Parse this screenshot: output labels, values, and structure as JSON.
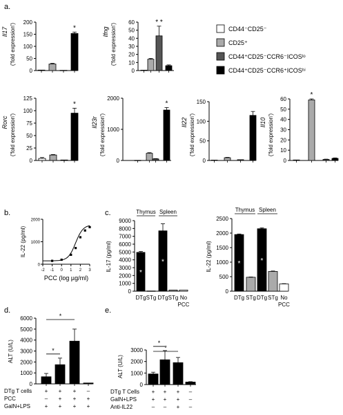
{
  "panel_labels": {
    "a": "a.",
    "b": "b.",
    "c": "c.",
    "d": "d.",
    "e": "e."
  },
  "legend": {
    "items": [
      {
        "label": "CD44⁻CD25⁻",
        "color": "#ffffff"
      },
      {
        "label": "CD25⁺",
        "color": "#aaaaaa"
      },
      {
        "label": "CD44⁺CD25⁻CCR6⁻ICOSˡᵒ",
        "color": "#555555"
      },
      {
        "label": "CD44⁺CD25⁻CCR6⁺ICOSʰⁱ",
        "color": "#000000"
      }
    ]
  },
  "colors": {
    "white_bar": "#ffffff",
    "lightgray_bar": "#aaaaaa",
    "darkgray_bar": "#555555",
    "black_bar": "#000000",
    "axis": "#000000"
  },
  "chart_data": [
    {
      "id": "a-il17",
      "type": "bar",
      "gene": "Il17",
      "ylabel": "('fold expression')",
      "ticks": [
        "0",
        "50",
        "100",
        "150",
        "200"
      ],
      "ylim": [
        0,
        200
      ],
      "values": [
        2,
        27,
        1,
        153
      ],
      "errors": [
        1,
        3,
        0.5,
        6
      ],
      "stars": [
        "",
        "",
        "",
        "*"
      ]
    },
    {
      "id": "a-ifng",
      "type": "bar",
      "gene": "Ifng",
      "ylabel": "('fold expression')",
      "ticks": [
        "0",
        "10",
        "20",
        "30",
        "40",
        "50",
        "60"
      ],
      "ylim": [
        0,
        60
      ],
      "values": [
        0.5,
        14,
        43,
        6
      ],
      "errors": [
        0.3,
        1,
        12,
        1
      ],
      "stars": [
        "",
        "",
        "* *",
        ""
      ]
    },
    {
      "id": "a-rorc",
      "type": "bar",
      "gene": "Rorc",
      "ylabel": "('fold expression')",
      "ticks": [
        "0",
        "25",
        "50",
        "75",
        "100",
        "125"
      ],
      "ylim": [
        0,
        125
      ],
      "values": [
        4,
        11,
        1,
        95
      ],
      "errors": [
        2,
        1,
        0.5,
        10
      ],
      "stars": [
        "",
        "",
        "",
        "*"
      ]
    },
    {
      "id": "a-il23r",
      "type": "bar",
      "gene": "Il23r",
      "ylabel": "('fold expression')",
      "ticks": [
        "0",
        "1000",
        "2000"
      ],
      "ylim": [
        0,
        2000
      ],
      "values": [
        5,
        230,
        50,
        1620
      ],
      "errors": [
        3,
        20,
        10,
        80
      ],
      "stars": [
        "",
        "",
        "",
        "*"
      ]
    },
    {
      "id": "a-il22",
      "type": "bar",
      "gene": "Il22",
      "ylabel": "('fold expression')",
      "ticks": [
        "0",
        "50",
        "100",
        "150"
      ],
      "ylim": [
        0,
        150
      ],
      "values": [
        1,
        7,
        2,
        115
      ],
      "errors": [
        0.5,
        1,
        0.5,
        10
      ],
      "stars": [
        "",
        "",
        "",
        ""
      ]
    },
    {
      "id": "a-il10",
      "type": "bar",
      "gene": "Il10",
      "ylabel": "('fold expression')",
      "ticks": [
        "0",
        "10",
        "20",
        "30",
        "40",
        "50",
        "60"
      ],
      "ylim": [
        0,
        60
      ],
      "values": [
        0.5,
        59,
        1,
        2
      ],
      "errors": [
        0.2,
        1,
        0.3,
        0.5
      ],
      "stars": [
        "",
        "*",
        "",
        ""
      ]
    },
    {
      "id": "b-dose",
      "type": "scatter",
      "ylabel": "IL-22 (pg/ml)",
      "xlabel": "PCC (log µg/ml)",
      "xticks": [
        "-2",
        "-1",
        "0",
        "1",
        "2",
        "3"
      ],
      "xlim": [
        -2,
        3
      ],
      "yticks": [
        "0",
        "1000",
        "2000"
      ],
      "ylim": [
        0,
        2000
      ],
      "points": [
        {
          "x": -1,
          "y": 150
        },
        {
          "x": 0,
          "y": 200
        },
        {
          "x": 1,
          "y": 420
        },
        {
          "x": 1.5,
          "y": 720
        },
        {
          "x": 2,
          "y": 1200
        },
        {
          "x": 2.5,
          "y": 1500
        },
        {
          "x": 3,
          "y": 1650
        }
      ]
    },
    {
      "id": "c-il17",
      "type": "bar",
      "ylabel": "IL-17 (pg/ml)",
      "ticks": [
        "0",
        "1000",
        "2000",
        "3000",
        "4000",
        "5000",
        "6000",
        "7000",
        "8000",
        "9000"
      ],
      "ylim": [
        0,
        9000
      ],
      "categories": [
        "DTg",
        "STg",
        "DTg",
        "STg",
        "No"
      ],
      "extra_label": "PCC",
      "groups": [
        "Thymus",
        "Spleen"
      ],
      "values": [
        4950,
        30,
        7700,
        150,
        150
      ],
      "errors": [
        120,
        10,
        900,
        20,
        20
      ],
      "colors": [
        "black",
        "white",
        "black",
        "gray",
        "white"
      ],
      "stars": [
        "*",
        "",
        "*",
        "",
        ""
      ]
    },
    {
      "id": "c-il22",
      "type": "bar",
      "ylabel": "IL-22 (pg/ml)",
      "ticks": [
        "0",
        "500",
        "1000",
        "1500",
        "2000",
        "2500"
      ],
      "ylim": [
        0,
        2500
      ],
      "categories": [
        "DTg",
        "STg",
        "DTg",
        "STg",
        "No"
      ],
      "extra_label": "PCC",
      "groups": [
        "Thymus",
        "Spleen"
      ],
      "values": [
        1950,
        480,
        2150,
        680,
        250
      ],
      "errors": [
        20,
        10,
        30,
        15,
        10
      ],
      "colors": [
        "black",
        "gray",
        "black",
        "gray",
        "white"
      ],
      "stars": [
        "*",
        "",
        "*",
        "",
        ""
      ]
    },
    {
      "id": "d-alt",
      "type": "bar",
      "ylabel": "ALT (U/L)",
      "ticks": [
        "0",
        "1000",
        "2000",
        "3000",
        "4000",
        "5000",
        "6000"
      ],
      "ylim": [
        0,
        6000
      ],
      "values": [
        650,
        1750,
        3900,
        80
      ],
      "errors": [
        300,
        600,
        1100,
        20
      ],
      "colors": [
        "black",
        "black",
        "black",
        "black"
      ],
      "row_labels": [
        "DTg T cells",
        "PCC",
        "GalN+LPS"
      ],
      "row_signs": [
        [
          "+",
          "+",
          "+",
          "–"
        ],
        [
          "–",
          "+",
          "+",
          "+"
        ],
        [
          "+",
          "+",
          "+",
          "+"
        ]
      ],
      "brackets": [
        {
          "from": 0,
          "to": 1,
          "text": "*"
        },
        {
          "from": 0,
          "to": 2,
          "text": "*"
        }
      ]
    },
    {
      "id": "e-alt",
      "type": "bar",
      "ylabel": "ALT (U/L)",
      "ticks": [
        "0",
        "1000",
        "2000",
        "3000"
      ],
      "ylim": [
        0,
        3000
      ],
      "values": [
        920,
        2150,
        1900,
        220
      ],
      "errors": [
        150,
        800,
        450,
        30
      ],
      "colors": [
        "black",
        "black",
        "black",
        "black"
      ],
      "row_labels": [
        "DTg T Cells",
        "GalN+LPS",
        "Anti-IL22"
      ],
      "row_signs": [
        [
          "+",
          "+",
          "+",
          "–"
        ],
        [
          "+",
          "+",
          "+",
          "–"
        ],
        [
          "–",
          "–",
          "+",
          "–"
        ]
      ],
      "brackets": [
        {
          "from": 0,
          "to": 1,
          "text": "*"
        },
        {
          "from": 0,
          "to": 2,
          "text": "*"
        }
      ]
    }
  ]
}
